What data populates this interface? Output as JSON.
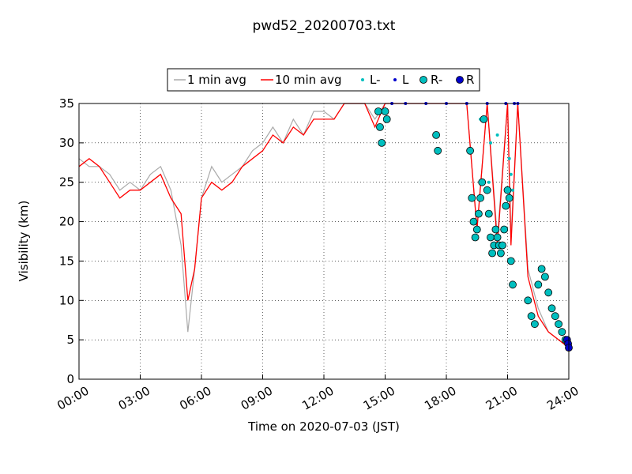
{
  "chart_data": {
    "type": "line",
    "title": "pwd52_20200703.txt",
    "xlabel": "Time on 2020-07-03 (JST)",
    "ylabel": "Visibility (km)",
    "xlim": [
      "2020-07-03 00:00",
      "2020-07-04 00:00"
    ],
    "ylim": [
      0,
      35
    ],
    "x_tick_labels": [
      "00:00",
      "03:00",
      "06:00",
      "09:00",
      "12:00",
      "15:00",
      "18:00",
      "21:00",
      "24:00"
    ],
    "y_ticks": [
      0,
      5,
      10,
      15,
      20,
      25,
      30,
      35
    ],
    "grid": true,
    "legend_position": "above-plot",
    "colors": {
      "one_min": "#aaaaaa",
      "ten_min": "#ff0000",
      "light_marker": "#00bfbf",
      "heavy_marker": "#0000cc"
    },
    "series": [
      {
        "name": "1 min avg",
        "style": "line",
        "x": [
          "00:00",
          "00:30",
          "01:00",
          "01:30",
          "02:00",
          "02:30",
          "03:00",
          "03:30",
          "04:00",
          "04:30",
          "05:00",
          "05:20",
          "05:40",
          "06:00",
          "06:30",
          "07:00",
          "07:30",
          "08:00",
          "08:30",
          "09:00",
          "09:30",
          "10:00",
          "10:30",
          "11:00",
          "11:30",
          "12:00",
          "12:30",
          "13:00",
          "13:30",
          "14:00",
          "14:30",
          "15:00",
          "15:30",
          "16:00",
          "17:00",
          "17:30",
          "18:00",
          "19:00",
          "19:30",
          "20:00",
          "20:30",
          "21:00",
          "21:10",
          "21:30",
          "22:00",
          "22:30",
          "23:00",
          "23:30",
          "24:00"
        ],
        "y": [
          28,
          27,
          27,
          26,
          24,
          25,
          24,
          26,
          27,
          24,
          17,
          6,
          14,
          23,
          27,
          25,
          26,
          27,
          29,
          30,
          32,
          30,
          33,
          31,
          34,
          34,
          33,
          35,
          35,
          35,
          33,
          35,
          35,
          35,
          35,
          35,
          35,
          35,
          19,
          35,
          18,
          35,
          18,
          35,
          14,
          9,
          6,
          5,
          4
        ]
      },
      {
        "name": "10 min avg",
        "style": "line",
        "x": [
          "00:00",
          "00:30",
          "01:00",
          "01:30",
          "02:00",
          "02:30",
          "03:00",
          "03:30",
          "04:00",
          "04:30",
          "05:00",
          "05:20",
          "05:40",
          "06:00",
          "06:30",
          "07:00",
          "07:30",
          "08:00",
          "08:30",
          "09:00",
          "09:30",
          "10:00",
          "10:30",
          "11:00",
          "11:30",
          "12:00",
          "12:30",
          "13:00",
          "13:30",
          "14:00",
          "14:30",
          "15:00",
          "15:30",
          "16:00",
          "17:00",
          "17:30",
          "18:00",
          "19:00",
          "19:30",
          "20:00",
          "20:30",
          "21:00",
          "21:10",
          "21:30",
          "22:00",
          "22:30",
          "23:00",
          "23:30",
          "24:00"
        ],
        "y": [
          27,
          28,
          27,
          25,
          23,
          24,
          24,
          25,
          26,
          23,
          21,
          10,
          14,
          23,
          25,
          24,
          25,
          27,
          28,
          29,
          31,
          30,
          32,
          31,
          33,
          33,
          33,
          35,
          35,
          35,
          32,
          35,
          35,
          35,
          35,
          35,
          35,
          35,
          19,
          35,
          17,
          35,
          17,
          35,
          13,
          8,
          6,
          5,
          4
        ]
      },
      {
        "name": "L-",
        "style": "marker",
        "x": [
          "19:40",
          "20:05",
          "20:10",
          "20:30",
          "21:05",
          "21:10",
          "21:15"
        ],
        "y": [
          33,
          25,
          30,
          31,
          28,
          26,
          24
        ]
      },
      {
        "name": "L",
        "style": "marker",
        "x": [
          "15:20",
          "16:00",
          "17:00",
          "18:00",
          "19:00",
          "20:00",
          "20:55",
          "21:20",
          "21:30"
        ],
        "y": [
          35,
          35,
          35,
          35,
          35,
          35,
          35,
          35,
          35
        ]
      },
      {
        "name": "R-",
        "style": "marker",
        "x": [
          "14:40",
          "14:45",
          "14:50",
          "15:00",
          "15:05",
          "17:30",
          "17:35",
          "19:10",
          "19:15",
          "19:20",
          "19:25",
          "19:30",
          "19:35",
          "19:40",
          "19:45",
          "19:50",
          "20:00",
          "20:05",
          "20:10",
          "20:15",
          "20:20",
          "20:25",
          "20:30",
          "20:35",
          "20:40",
          "20:45",
          "20:50",
          "20:55",
          "21:00",
          "21:05",
          "21:10",
          "21:15",
          "22:00",
          "22:10",
          "22:20",
          "22:30",
          "22:40",
          "22:50",
          "23:00",
          "23:10",
          "23:20",
          "23:30",
          "23:40",
          "23:50"
        ],
        "y": [
          34,
          32,
          30,
          34,
          33,
          31,
          29,
          29,
          23,
          20,
          18,
          19,
          21,
          23,
          25,
          33,
          24,
          21,
          18,
          16,
          17,
          19,
          18,
          17,
          16,
          17,
          19,
          22,
          24,
          23,
          15,
          12,
          10,
          8,
          7,
          12,
          14,
          13,
          11,
          9,
          8,
          7,
          6,
          5
        ]
      },
      {
        "name": "R",
        "style": "marker",
        "x": [
          "23:55",
          "23:58",
          "24:00"
        ],
        "y": [
          5,
          4.5,
          4
        ]
      }
    ]
  }
}
